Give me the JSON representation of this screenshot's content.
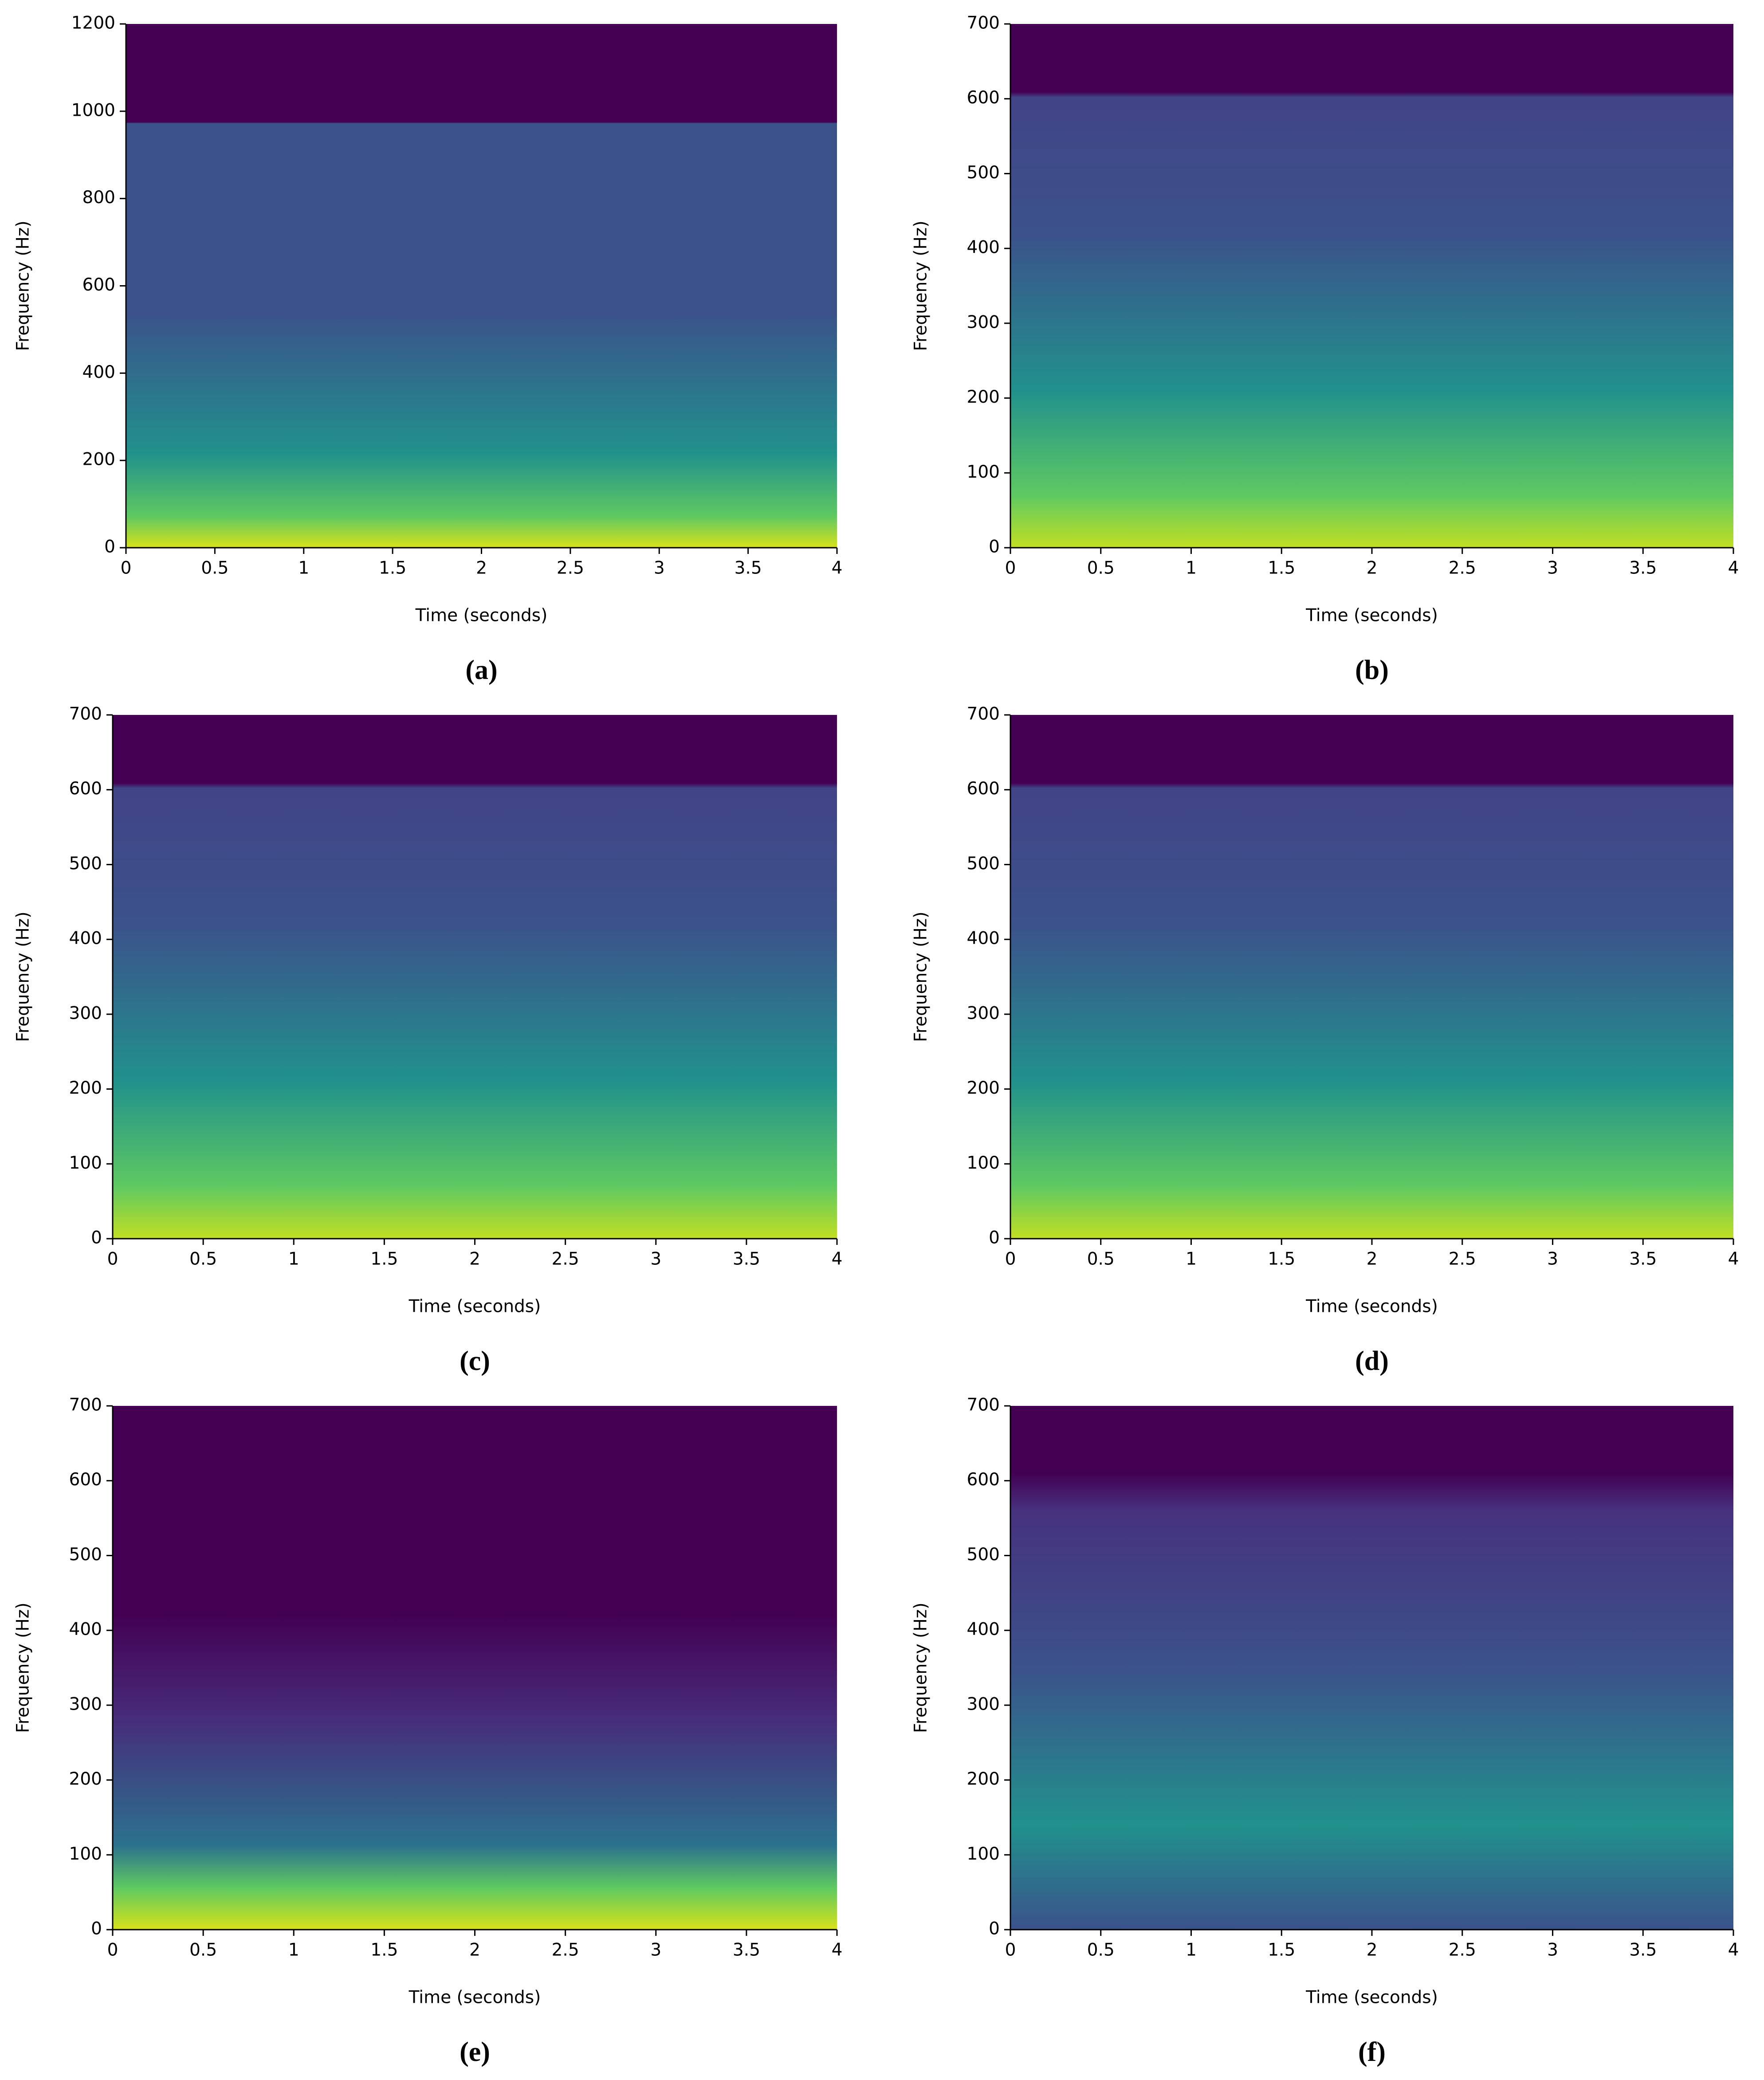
{
  "chart_data": [
    {
      "type": "spectrogram",
      "caption": "(a)",
      "xlabel": "Time (seconds)",
      "ylabel": "Frequency (Hz)",
      "xlim": [
        0,
        4
      ],
      "ylim": [
        0,
        1200
      ],
      "xticks": [
        0,
        0.5,
        1,
        1.5,
        2,
        2.5,
        3,
        3.5,
        4
      ],
      "yticks": [
        0,
        200,
        400,
        600,
        800,
        1000,
        1200
      ]
    },
    {
      "type": "spectrogram",
      "caption": "(b)",
      "xlabel": "Time (seconds)",
      "ylabel": "Frequency (Hz)",
      "xlim": [
        0,
        4
      ],
      "ylim": [
        0,
        700
      ],
      "xticks": [
        0,
        0.5,
        1,
        1.5,
        2,
        2.5,
        3,
        3.5,
        4
      ],
      "yticks": [
        0,
        100,
        200,
        300,
        400,
        500,
        600,
        700
      ]
    },
    {
      "type": "spectrogram",
      "caption": "(c)",
      "xlabel": "Time (seconds)",
      "ylabel": "Frequency (Hz)",
      "xlim": [
        0,
        4
      ],
      "ylim": [
        0,
        700
      ],
      "xticks": [
        0,
        0.5,
        1,
        1.5,
        2,
        2.5,
        3,
        3.5,
        4
      ],
      "yticks": [
        0,
        100,
        200,
        300,
        400,
        500,
        600,
        700
      ]
    },
    {
      "type": "spectrogram",
      "caption": "(d)",
      "xlabel": "Time (seconds)",
      "ylabel": "Frequency (Hz)",
      "xlim": [
        0,
        4
      ],
      "ylim": [
        0,
        700
      ],
      "xticks": [
        0,
        0.5,
        1,
        1.5,
        2,
        2.5,
        3,
        3.5,
        4
      ],
      "yticks": [
        0,
        100,
        200,
        300,
        400,
        500,
        600,
        700
      ]
    },
    {
      "type": "spectrogram",
      "caption": "(e)",
      "xlabel": "Time (seconds)",
      "ylabel": "Frequency (Hz)",
      "xlim": [
        0,
        4
      ],
      "ylim": [
        0,
        700
      ],
      "xticks": [
        0,
        0.5,
        1,
        1.5,
        2,
        2.5,
        3,
        3.5,
        4
      ],
      "yticks": [
        0,
        100,
        200,
        300,
        400,
        500,
        600,
        700
      ]
    },
    {
      "type": "spectrogram",
      "caption": "(f)",
      "xlabel": "Time (seconds)",
      "ylabel": "Frequency (Hz)",
      "xlim": [
        0,
        4
      ],
      "ylim": [
        0,
        700
      ],
      "xticks": [
        0,
        0.5,
        1,
        1.5,
        2,
        2.5,
        3,
        3.5,
        4
      ],
      "yticks": [
        0,
        100,
        200,
        300,
        400,
        500,
        600,
        700
      ]
    }
  ]
}
